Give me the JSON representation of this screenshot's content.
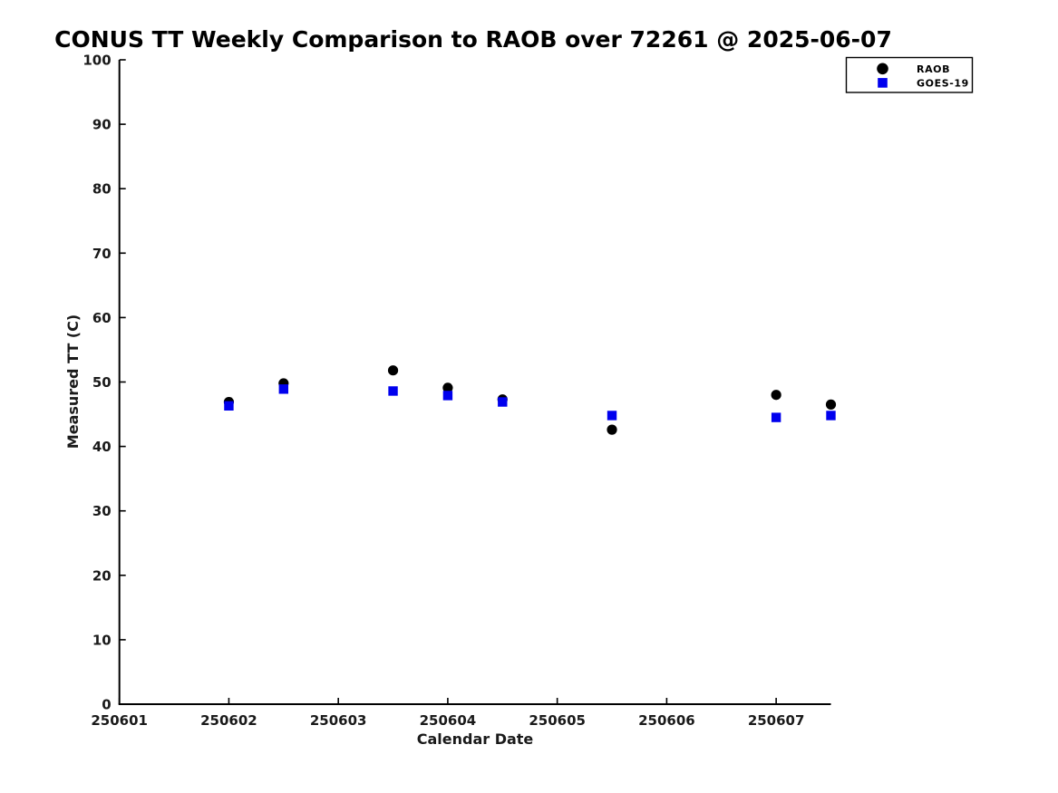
{
  "chart_data": {
    "type": "scatter",
    "title": "CONUS TT Weekly Comparison to RAOB over 72261 @ 2025-06-07",
    "xlabel": "Calendar Date",
    "ylabel": "Measured TT (C)",
    "x_tick_labels": [
      "250601",
      "250602",
      "250603",
      "250604",
      "250605",
      "250606",
      "250607"
    ],
    "x_tick_positions": [
      0,
      1,
      2,
      3,
      4,
      5,
      6
    ],
    "xlim": [
      0,
      6.5
    ],
    "ylim": [
      0,
      100
    ],
    "y_ticks": [
      0,
      10,
      20,
      30,
      40,
      50,
      60,
      70,
      80,
      90,
      100
    ],
    "grid": false,
    "legend_position": "top-right",
    "series": [
      {
        "name": "RAOB",
        "marker": "circle",
        "color": "#000000",
        "x": [
          1,
          1.5,
          2.5,
          3,
          3.5,
          4.5,
          6,
          6.5
        ],
        "values": [
          46.9,
          49.8,
          51.8,
          49.1,
          47.3,
          42.6,
          48.0,
          46.5
        ]
      },
      {
        "name": "GOES-19",
        "marker": "square",
        "color": "#0000ee",
        "x": [
          1,
          1.5,
          2.5,
          3,
          3.5,
          4.5,
          6,
          6.5
        ],
        "values": [
          46.3,
          48.9,
          48.6,
          47.9,
          46.9,
          44.8,
          44.5,
          44.8
        ]
      }
    ]
  }
}
